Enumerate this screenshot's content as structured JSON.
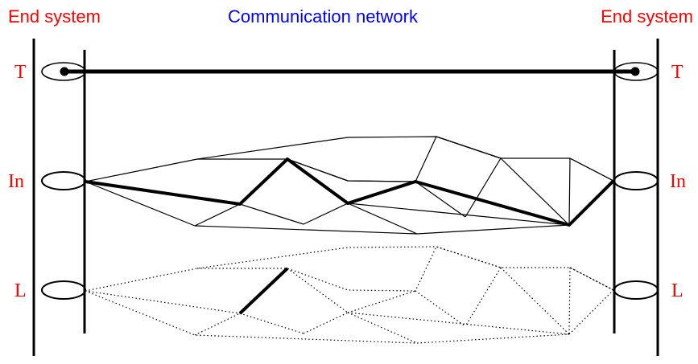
{
  "header": {
    "left": "End system",
    "center": "Communication network",
    "right": "End system"
  },
  "layers": {
    "top": "T",
    "middle": "In",
    "bottom": "L"
  },
  "colors": {
    "end_system_text": "#ff0000",
    "network_text": "#0000ff",
    "layer_label": "#ff0000",
    "line": "#000000"
  }
}
